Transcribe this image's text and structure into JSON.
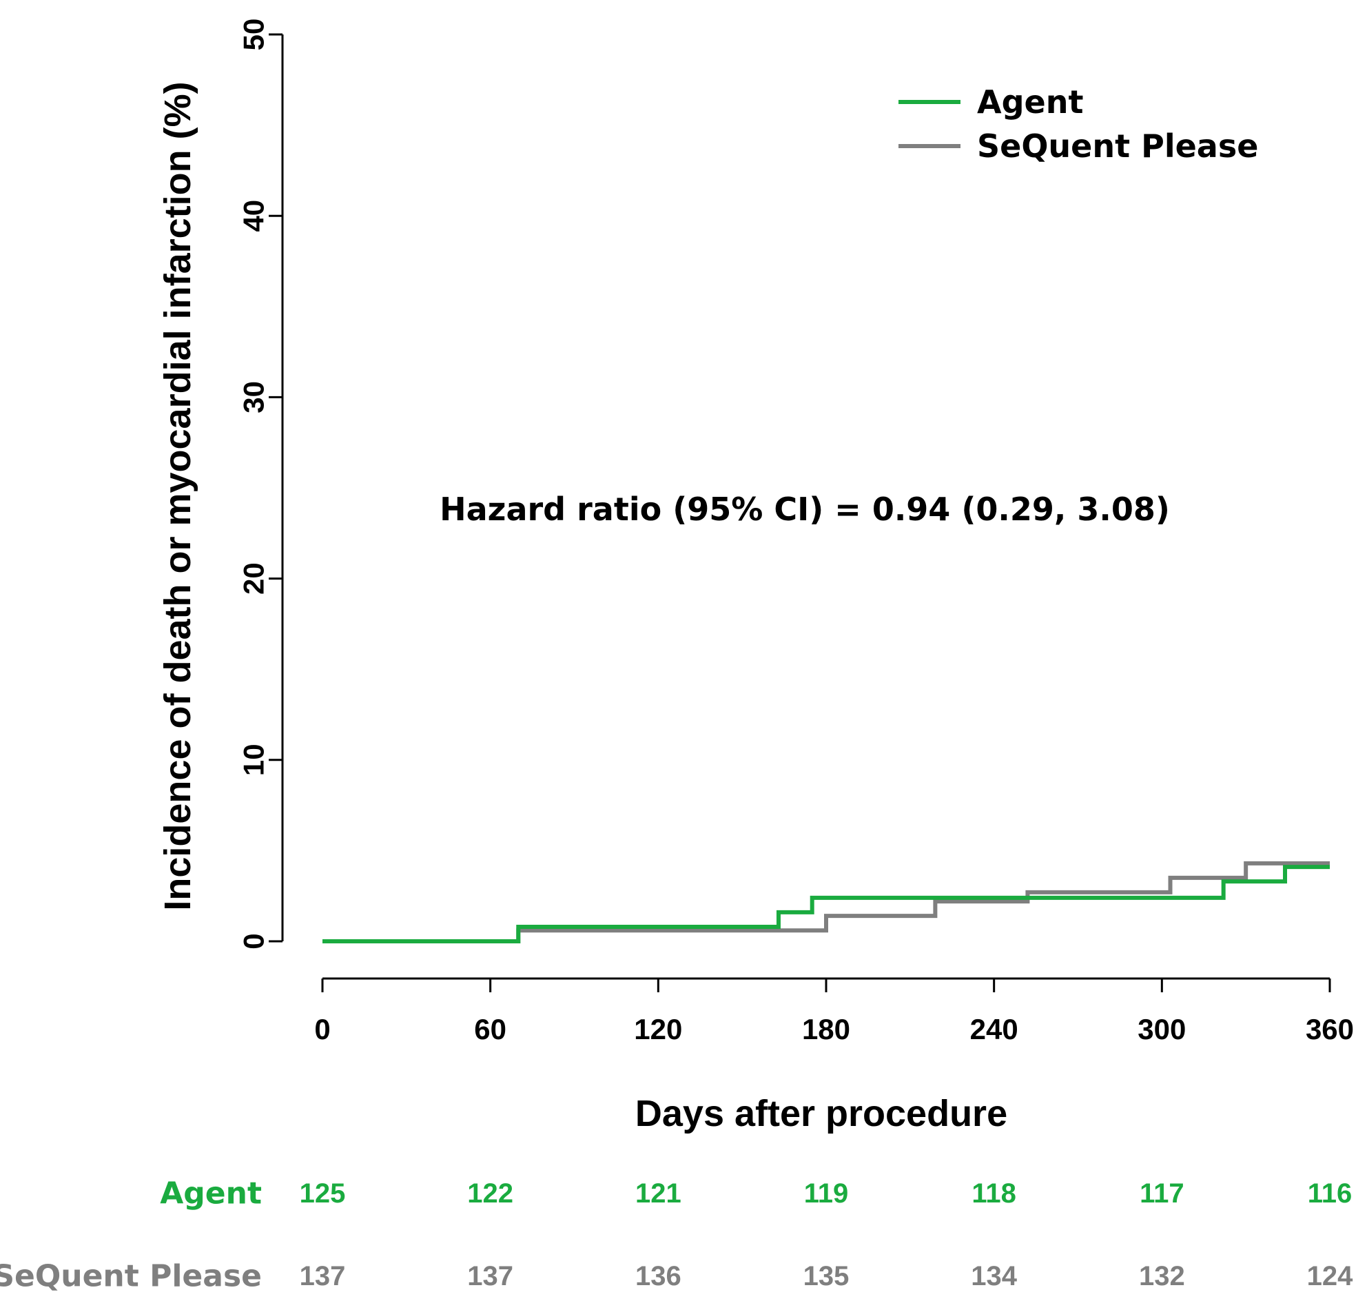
{
  "chart_data": {
    "type": "line",
    "step": true,
    "xlabel": "Days after procedure",
    "ylabel": "Incidence of death or myocardial infarction (%)",
    "xlim": [
      0,
      360
    ],
    "ylim": [
      0,
      50
    ],
    "xticks": [
      0,
      60,
      120,
      180,
      240,
      300,
      360
    ],
    "yticks": [
      0,
      10,
      20,
      30,
      40,
      50
    ],
    "grid": false,
    "legend_position": "top-right",
    "annotation": "Hazard ratio (95% CI) = 0.94 (0.29, 3.08)",
    "series": [
      {
        "name": "Agent",
        "color": "#1aab3f",
        "x": [
          0,
          70,
          163,
          175,
          322,
          344,
          360
        ],
        "y": [
          0.0,
          0.8,
          1.6,
          2.4,
          3.3,
          4.1,
          4.1
        ]
      },
      {
        "name": "SeQuent Please",
        "color": "#7f7f7f",
        "x": [
          0,
          70,
          180,
          219,
          252,
          303,
          330,
          360
        ],
        "y": [
          0.0,
          0.6,
          1.4,
          2.2,
          2.7,
          3.5,
          4.3,
          4.3
        ]
      }
    ],
    "risk_table": {
      "times": [
        0,
        60,
        120,
        180,
        240,
        300,
        360
      ],
      "rows": [
        {
          "label": "Agent",
          "color": "#1aab3f",
          "values": [
            "125",
            "122",
            "121",
            "119",
            "118",
            "117",
            "116"
          ]
        },
        {
          "label": "SeQuent Please",
          "color": "#7f7f7f",
          "values": [
            "137",
            "137",
            "136",
            "135",
            "134",
            "132",
            "124"
          ]
        }
      ]
    }
  }
}
